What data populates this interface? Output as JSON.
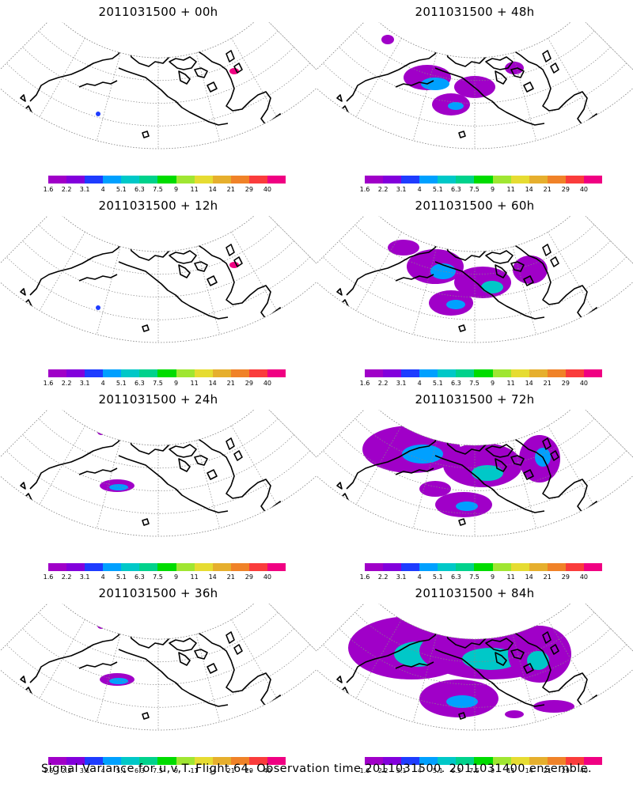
{
  "panels": [
    {
      "title": "2011031500 + 00h",
      "spread": 0
    },
    {
      "title": "2011031500 + 48h",
      "spread": 2
    },
    {
      "title": "2011031500 + 12h",
      "spread": 0
    },
    {
      "title": "2011031500 + 60h",
      "spread": 3
    },
    {
      "title": "2011031500 + 24h",
      "spread": 1
    },
    {
      "title": "2011031500 + 72h",
      "spread": 4
    },
    {
      "title": "2011031500 + 36h",
      "spread": 1
    },
    {
      "title": "2011031500 + 84h",
      "spread": 5
    }
  ],
  "legend": {
    "labels": [
      "1.6",
      "2.2",
      "3.1",
      "4",
      "5.1",
      "6.3",
      "7.5",
      "9",
      "11",
      "14",
      "21",
      "29",
      "40"
    ],
    "colors": [
      "#a000c8",
      "#8200dc",
      "#1e3cff",
      "#00a0ff",
      "#00c8c8",
      "#00d28c",
      "#00dc00",
      "#a0e632",
      "#e6dc32",
      "#e6af2d",
      "#f08228",
      "#fa3c3c",
      "#f00082"
    ]
  },
  "footer": "Signal Variance for u,v,T. Flight 64. Observation time 2011031500. 2011031400 ensemble."
}
